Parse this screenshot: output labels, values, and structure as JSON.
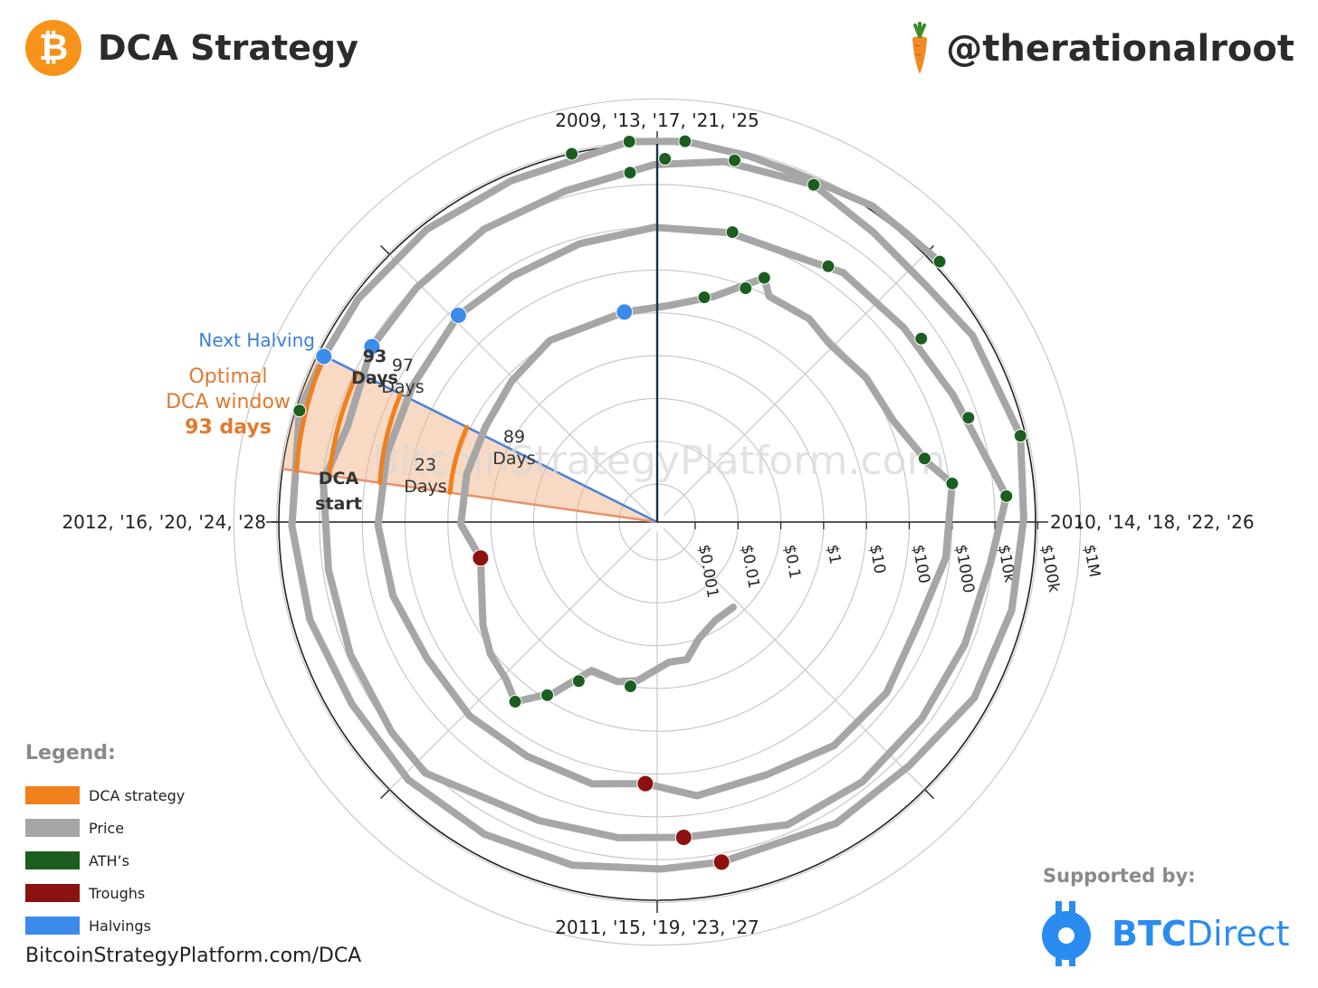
{
  "header": {
    "title": "DCA Strategy",
    "logo_glyph": "₿",
    "logo_color": "#f7931a",
    "handle": "@therationalroot",
    "handle_icon": "carrot-icon"
  },
  "watermark": "BitcoinStrategyPlatform.com",
  "chart_data": {
    "type": "polar-spiral",
    "angular_axis_labels": {
      "top": "2009, '13, '17, '21, '25",
      "right": "2010, '14, '18, '22, '26",
      "bottom": "2011, '15, '19, '23, '27",
      "left": "2012, '16, '20, '24, '28"
    },
    "radial_axis": {
      "scale": "log",
      "tick_labels": [
        "$0.001",
        "$0.01",
        "$0.1",
        "$1",
        "$10",
        "$100",
        "$1000",
        "$10k",
        "$100k",
        "$1M"
      ],
      "tick_values": [
        0.001,
        0.01,
        0.1,
        1,
        10,
        100,
        1000,
        10000,
        100000,
        1000000
      ]
    },
    "cycle_years": 4,
    "start_date": "2009-01-03",
    "series": [
      {
        "name": "Price",
        "color": "#a6a6a6",
        "points": [
          [
            "2010-07-18",
            0.06
          ],
          [
            "2010-09-01",
            0.06
          ],
          [
            "2010-10-15",
            0.1
          ],
          [
            "2010-11-15",
            0.25
          ],
          [
            "2010-12-15",
            0.25
          ],
          [
            "2011-02-01",
            0.7
          ],
          [
            "2011-03-01",
            0.9
          ],
          [
            "2011-04-10",
            0.8
          ],
          [
            "2011-05-10",
            6
          ],
          [
            "2011-06-08",
            29
          ],
          [
            "2011-07-01",
            16
          ],
          [
            "2011-08-01",
            12
          ],
          [
            "2011-09-01",
            7
          ],
          [
            "2011-10-15",
            3
          ],
          [
            "2011-11-18",
            2.1
          ],
          [
            "2012-01-01",
            5
          ],
          [
            "2012-03-01",
            5
          ],
          [
            "2012-05-01",
            5
          ],
          [
            "2012-07-01",
            7
          ],
          [
            "2012-09-01",
            11
          ],
          [
            "2012-11-28",
            12
          ],
          [
            "2013-01-15",
            15
          ],
          [
            "2013-03-01",
            35
          ],
          [
            "2013-04-09",
            220
          ],
          [
            "2013-04-20",
            100
          ],
          [
            "2013-06-01",
            110
          ],
          [
            "2013-07-01",
            80
          ],
          [
            "2013-08-15",
            110
          ],
          [
            "2013-10-01",
            130
          ],
          [
            "2013-11-15",
            400
          ],
          [
            "2013-12-04",
            1150
          ],
          [
            "2014-02-01",
            800
          ],
          [
            "2014-04-01",
            450
          ],
          [
            "2014-06-01",
            620
          ],
          [
            "2014-08-01",
            590
          ],
          [
            "2014-10-01",
            350
          ],
          [
            "2014-12-01",
            375
          ],
          [
            "2015-01-14",
            170
          ],
          [
            "2015-03-01",
            260
          ],
          [
            "2015-05-01",
            235
          ],
          [
            "2015-07-01",
            260
          ],
          [
            "2015-09-01",
            230
          ],
          [
            "2015-11-01",
            330
          ],
          [
            "2016-01-01",
            430
          ],
          [
            "2016-03-01",
            420
          ],
          [
            "2016-05-01",
            450
          ],
          [
            "2016-07-09",
            650
          ],
          [
            "2016-09-01",
            600
          ],
          [
            "2016-11-01",
            730
          ],
          [
            "2017-01-01",
            1000
          ],
          [
            "2017-03-01",
            1200
          ],
          [
            "2017-05-01",
            1400
          ],
          [
            "2017-06-01",
            2400
          ],
          [
            "2017-08-01",
            2800
          ],
          [
            "2017-10-01",
            4300
          ],
          [
            "2017-12-17",
            19500
          ],
          [
            "2018-02-01",
            9000
          ],
          [
            "2018-04-01",
            7000
          ],
          [
            "2018-06-01",
            6500
          ],
          [
            "2018-08-01",
            7000
          ],
          [
            "2018-10-01",
            6500
          ],
          [
            "2018-12-15",
            3200
          ],
          [
            "2019-02-01",
            3500
          ],
          [
            "2019-04-01",
            4100
          ],
          [
            "2019-06-26",
            12500
          ],
          [
            "2019-08-01",
            10500
          ],
          [
            "2019-10-01",
            8300
          ],
          [
            "2019-12-01",
            7400
          ],
          [
            "2020-02-01",
            9300
          ],
          [
            "2020-03-13",
            4800
          ],
          [
            "2020-05-11",
            8600
          ],
          [
            "2020-07-01",
            9100
          ],
          [
            "2020-09-01",
            11500
          ],
          [
            "2020-11-01",
            13800
          ],
          [
            "2021-01-01",
            29000
          ],
          [
            "2021-02-15",
            48000
          ],
          [
            "2021-04-14",
            63000
          ],
          [
            "2021-06-01",
            36000
          ],
          [
            "2021-07-20",
            30000
          ],
          [
            "2021-09-01",
            47000
          ],
          [
            "2021-11-10",
            68000
          ],
          [
            "2022-01-01",
            47000
          ],
          [
            "2022-03-01",
            44000
          ],
          [
            "2022-05-01",
            38000
          ],
          [
            "2022-07-01",
            20000
          ],
          [
            "2022-09-01",
            20000
          ],
          [
            "2022-11-21",
            15800
          ],
          [
            "2023-01-01",
            16600
          ],
          [
            "2023-03-01",
            23500
          ],
          [
            "2023-05-01",
            28000
          ],
          [
            "2023-07-01",
            30500
          ],
          [
            "2023-09-01",
            26000
          ],
          [
            "2023-11-01",
            34500
          ],
          [
            "2024-01-01",
            44000
          ],
          [
            "2024-03-14",
            73000
          ],
          [
            "2024-04-20",
            64000
          ],
          [
            "2024-06-01",
            67000
          ],
          [
            "2024-08-01",
            65000
          ],
          [
            "2024-10-01",
            61000
          ],
          [
            "2024-12-17",
            106000
          ],
          [
            "2025-01-20",
            108000
          ],
          [
            "2025-03-01",
            85000
          ],
          [
            "2025-04-08",
            77000
          ],
          [
            "2025-05-22",
            111000
          ],
          [
            "2025-06-15",
            105000
          ],
          [
            "2025-07-14",
            122000
          ]
        ]
      },
      {
        "name": "ATH's",
        "color": "#1b5e20",
        "points": [
          [
            "2011-02-10",
            1.0
          ],
          [
            "2011-04-20",
            1.8
          ],
          [
            "2011-05-15",
            8
          ],
          [
            "2011-06-08",
            29
          ],
          [
            "2013-02-20",
            30
          ],
          [
            "2013-03-28",
            90
          ],
          [
            "2013-04-09",
            220
          ],
          [
            "2013-11-10",
            340
          ],
          [
            "2013-12-04",
            1150
          ],
          [
            "2017-03-03",
            1290
          ],
          [
            "2017-05-20",
            2000
          ],
          [
            "2017-08-15",
            4200
          ],
          [
            "2017-10-20",
            6000
          ],
          [
            "2017-12-17",
            19500
          ],
          [
            "2020-12-16",
            20000
          ],
          [
            "2021-01-08",
            40000
          ],
          [
            "2021-02-21",
            57000
          ],
          [
            "2021-04-14",
            63000
          ],
          [
            "2021-11-10",
            68000
          ],
          [
            "2024-03-14",
            73000
          ],
          [
            "2024-11-11",
            88000
          ],
          [
            "2024-12-17",
            106000
          ],
          [
            "2025-01-20",
            108000
          ],
          [
            "2025-07-14",
            122000
          ]
        ]
      },
      {
        "name": "Troughs",
        "color": "#8b1210",
        "points": [
          [
            "2011-11-18",
            2.1
          ],
          [
            "2015-01-14",
            170
          ],
          [
            "2018-12-15",
            3200
          ],
          [
            "2022-11-21",
            15800
          ]
        ]
      },
      {
        "name": "Halvings",
        "color": "#3b8beb",
        "points": [
          [
            "2012-11-28",
            12
          ],
          [
            "2016-07-09",
            650
          ],
          [
            "2020-05-11",
            8600
          ],
          [
            "2024-04-20",
            64000
          ]
        ]
      },
      {
        "name": "DCA strategy",
        "color": "#f0801e",
        "points": []
      }
    ],
    "annotations": {
      "next_halving": "Next Halving",
      "optimal_label": "Optimal",
      "optimal_label_2": "DCA window",
      "optimal_days": "93 days",
      "dca_start_1": "DCA",
      "dca_start_2": "start",
      "cycle_labels": [
        {
          "num": "23",
          "unit": "Days"
        },
        {
          "num": "89",
          "unit": "Days"
        },
        {
          "num": "97",
          "unit": "Days"
        },
        {
          "num": "93",
          "unit": "Days"
        }
      ]
    }
  },
  "legend": {
    "title": "Legend:",
    "items": [
      {
        "label": "DCA strategy",
        "color": "#f0801e"
      },
      {
        "label": "Price",
        "color": "#a6a6a6"
      },
      {
        "label": "ATH’s",
        "color": "#1b5e20"
      },
      {
        "label": "Troughs",
        "color": "#8b1210"
      },
      {
        "label": "Halvings",
        "color": "#3b8beb"
      }
    ]
  },
  "footer": {
    "url": "BitcoinStrategyPlatform.com/DCA",
    "supported_by": "Supported by:",
    "sponsor_bold": "BTC",
    "sponsor_rest": "Direct",
    "sponsor_icon": "btcdirect-icon"
  }
}
